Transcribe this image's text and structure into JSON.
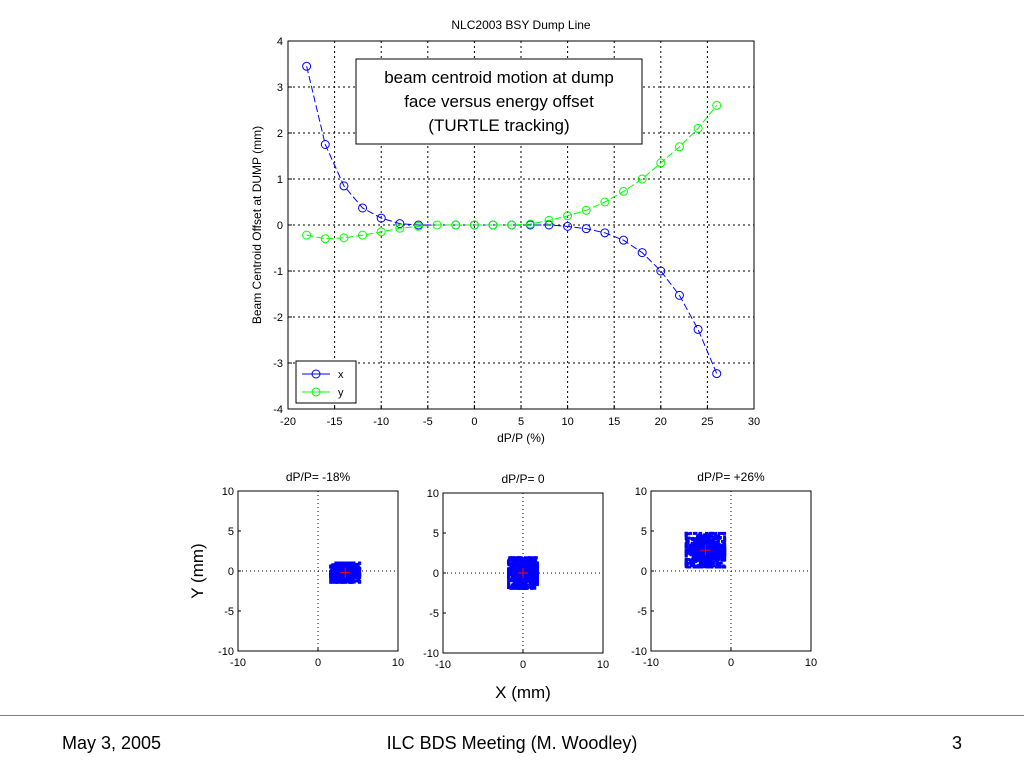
{
  "slide": {
    "footer_date": "May 3, 2005",
    "footer_center": "ILC BDS Meeting (M. Woodley)",
    "footer_page": "3"
  },
  "colors": {
    "series_x": "#0000ff",
    "series_y": "#00ff00",
    "centroid_marker": "#ff0000",
    "scatter": "#0000ff"
  },
  "chart_data": [
    {
      "type": "line",
      "title": "NLC2003 BSY Dump Line",
      "xlabel": "dP/P (%)",
      "ylabel": "Beam Centroid Offset at DUMP (mm)",
      "xlim": [
        -20,
        30
      ],
      "ylim": [
        -4,
        4
      ],
      "xticks": [
        -20,
        -15,
        -10,
        -5,
        0,
        5,
        10,
        15,
        20,
        25,
        30
      ],
      "yticks": [
        -4,
        -3,
        -2,
        -1,
        0,
        1,
        2,
        3,
        4
      ],
      "grid": true,
      "legend_position": "bottom-left",
      "annotation": [
        "beam centroid motion at dump",
        "face versus energy offset",
        "(TURTLE tracking)"
      ],
      "series": [
        {
          "name": "x",
          "x": [
            -18,
            -16,
            -14,
            -12,
            -10,
            -8,
            -6,
            -2,
            0,
            2,
            4,
            6,
            8,
            10,
            12,
            14,
            16,
            18,
            20,
            22,
            24,
            26
          ],
          "y": [
            3.45,
            1.75,
            0.85,
            0.37,
            0.15,
            0.03,
            0.0,
            0.0,
            0.0,
            0.0,
            0.0,
            0.0,
            0.0,
            -0.03,
            -0.08,
            -0.17,
            -0.33,
            -0.6,
            -1.0,
            -1.53,
            -2.27,
            -3.23
          ]
        },
        {
          "name": "y",
          "x": [
            -18,
            -16,
            -14,
            -12,
            -10,
            -8,
            -6,
            -4,
            -2,
            0,
            2,
            4,
            6,
            8,
            10,
            12,
            14,
            16,
            18,
            20,
            22,
            24,
            26
          ],
          "y": [
            -0.22,
            -0.3,
            -0.28,
            -0.22,
            -0.15,
            -0.07,
            -0.03,
            0.0,
            0.0,
            0.0,
            0.0,
            0.0,
            0.02,
            0.1,
            0.2,
            0.32,
            0.5,
            0.73,
            1.0,
            1.35,
            1.7,
            2.1,
            2.6
          ]
        }
      ]
    },
    {
      "type": "scatter",
      "title": "dP/P= -18%",
      "ylabel": "Y (mm)",
      "xlim": [
        -10,
        10
      ],
      "ylim": [
        -10,
        10
      ],
      "xticks": [
        -10,
        0,
        10
      ],
      "yticks": [
        -10,
        -5,
        0,
        5,
        10
      ],
      "centroid": [
        3.4,
        -0.2
      ],
      "cloud_spread": [
        1.8,
        1.2
      ]
    },
    {
      "type": "scatter",
      "title": "dP/P= 0",
      "xlabel": "X (mm)",
      "xlim": [
        -10,
        10
      ],
      "ylim": [
        -10,
        10
      ],
      "xticks": [
        -10,
        0,
        10
      ],
      "yticks": [
        -10,
        -5,
        0,
        5,
        10
      ],
      "centroid": [
        0.0,
        0.0
      ],
      "cloud_spread": [
        1.8,
        1.9
      ]
    },
    {
      "type": "scatter",
      "title": "dP/P= +26%",
      "xlim": [
        -10,
        10
      ],
      "ylim": [
        -10,
        10
      ],
      "xticks": [
        -10,
        0,
        10
      ],
      "yticks": [
        -10,
        -5,
        0,
        5,
        10
      ],
      "centroid": [
        -3.2,
        2.6
      ],
      "cloud_spread": [
        2.4,
        2.1
      ]
    }
  ]
}
